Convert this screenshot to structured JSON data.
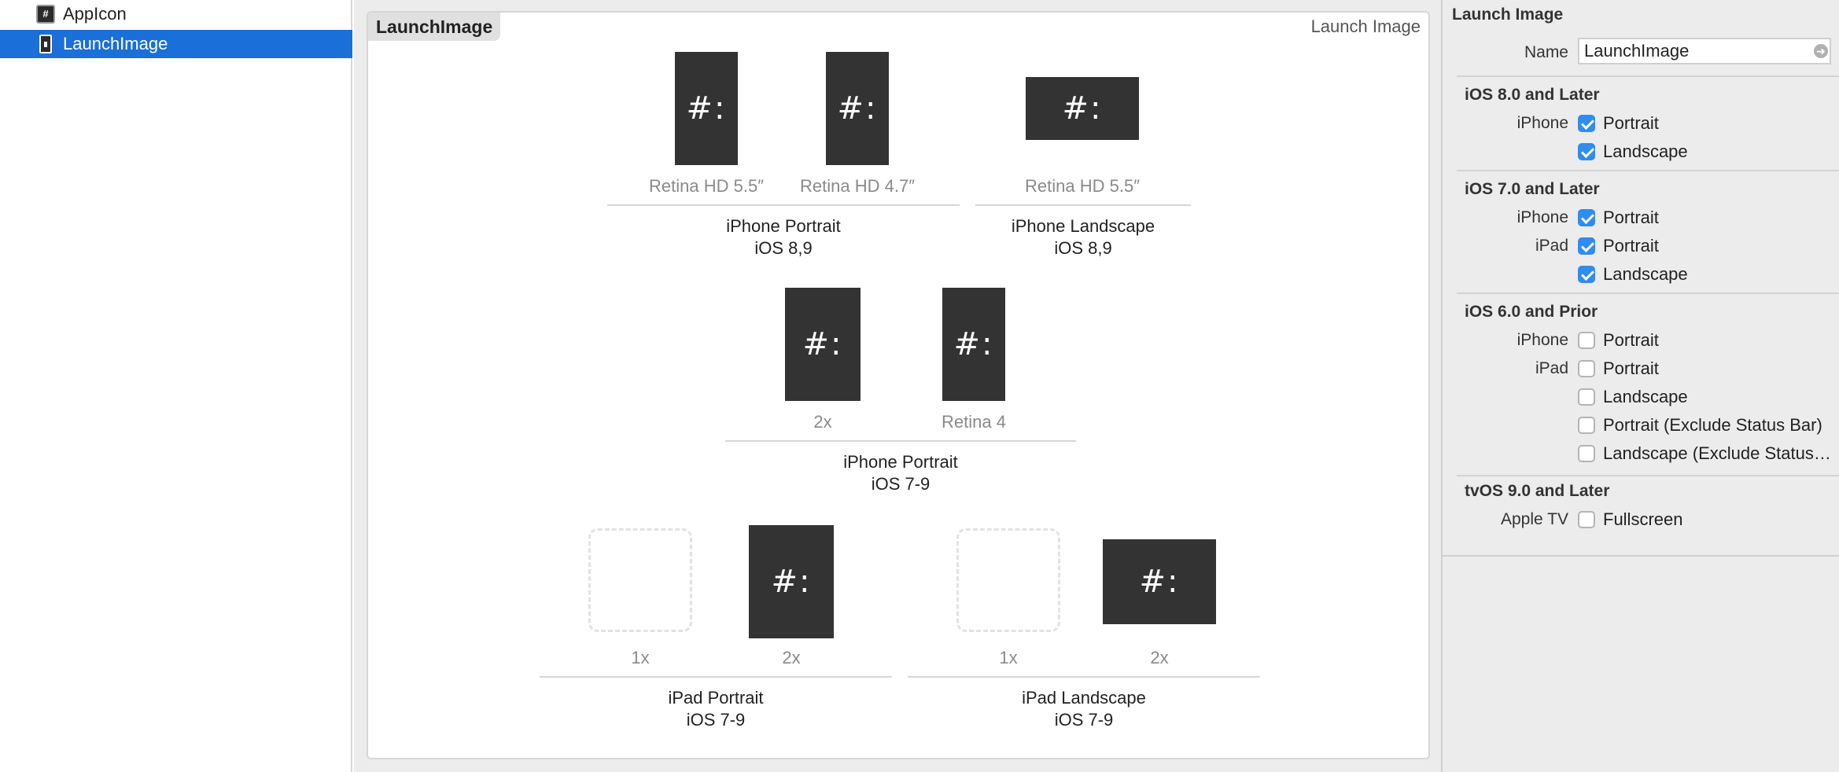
{
  "sidebar": {
    "items": [
      {
        "label": "AppIcon",
        "icon": "app-icon-set-icon",
        "selected": false
      },
      {
        "label": "LaunchImage",
        "icon": "launch-image-set-icon",
        "selected": true
      }
    ],
    "selected_color": "#1a6fd8"
  },
  "editor": {
    "tab_label": "LaunchImage",
    "panel_title": "Launch Image",
    "slot_glyph": "#:",
    "slots": [
      {
        "label": "Retina HD 5.5″",
        "filled": true
      },
      {
        "label": "Retina HD 4.7″",
        "filled": true
      },
      {
        "label": "Retina HD 5.5″",
        "filled": true
      },
      {
        "label": "2x",
        "filled": true
      },
      {
        "label": "Retina 4",
        "filled": true
      },
      {
        "label": "1x",
        "filled": false
      },
      {
        "label": "2x",
        "filled": true
      },
      {
        "label": "1x",
        "filled": false
      },
      {
        "label": "2x",
        "filled": true
      }
    ],
    "groups": [
      {
        "name": "iPhone Portrait",
        "versions": "iOS 8,9"
      },
      {
        "name": "iPhone Landscape",
        "versions": "iOS 8,9"
      },
      {
        "name": "iPhone Portrait",
        "versions": "iOS 7-9"
      },
      {
        "name": "iPad Portrait",
        "versions": "iOS 7-9"
      },
      {
        "name": "iPad Landscape",
        "versions": "iOS 7-9"
      }
    ]
  },
  "inspector": {
    "header": "Launch Image",
    "name_label": "Name",
    "name_value": "LaunchImage",
    "checkbox_color": "#2f8cf0",
    "sections": [
      {
        "title": "iOS 8.0 and Later",
        "rows": [
          {
            "device": "iPhone",
            "label": "Portrait",
            "checked": true
          },
          {
            "device": "",
            "label": "Landscape",
            "checked": true
          }
        ]
      },
      {
        "title": "iOS 7.0 and Later",
        "rows": [
          {
            "device": "iPhone",
            "label": "Portrait",
            "checked": true
          },
          {
            "device": "iPad",
            "label": "Portrait",
            "checked": true
          },
          {
            "device": "",
            "label": "Landscape",
            "checked": true
          }
        ]
      },
      {
        "title": "iOS 6.0 and Prior",
        "rows": [
          {
            "device": "iPhone",
            "label": "Portrait",
            "checked": false
          },
          {
            "device": "iPad",
            "label": "Portrait",
            "checked": false
          },
          {
            "device": "",
            "label": "Landscape",
            "checked": false
          },
          {
            "device": "",
            "label": "Portrait (Exclude Status Bar)",
            "checked": false
          },
          {
            "device": "",
            "label": "Landscape (Exclude Status…",
            "checked": false
          }
        ]
      },
      {
        "title": "tvOS 9.0 and Later",
        "rows": [
          {
            "device": "Apple TV",
            "label": "Fullscreen",
            "checked": false
          }
        ]
      }
    ]
  }
}
